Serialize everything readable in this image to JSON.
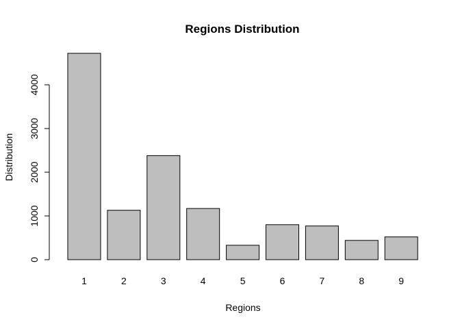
{
  "chart_data": {
    "type": "bar",
    "title": "Regions Distribution",
    "xlabel": "Regions",
    "ylabel": "Distribution",
    "categories": [
      "1",
      "2",
      "3",
      "4",
      "5",
      "6",
      "7",
      "8",
      "9"
    ],
    "values": [
      4720,
      1130,
      2380,
      1170,
      330,
      800,
      770,
      440,
      520
    ],
    "ylim": [
      0,
      4720
    ],
    "yticks": [
      0,
      1000,
      2000,
      3000,
      4000
    ],
    "grid": false,
    "legend": "none",
    "bar_color": "#bebebe",
    "border_color": "#000000"
  }
}
